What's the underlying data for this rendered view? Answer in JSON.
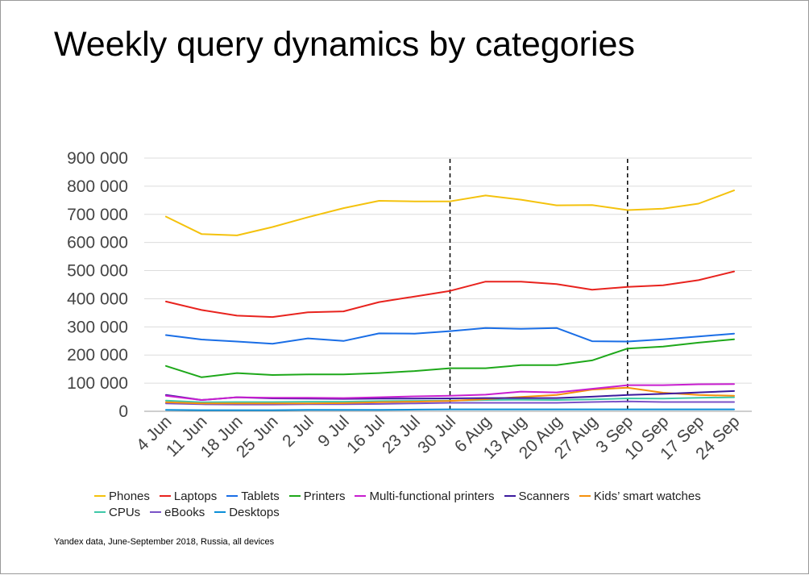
{
  "title": "Weekly query dynamics by categories",
  "source": "Yandex data, June-September 2018, Russia, all devices",
  "chart_data": {
    "type": "line",
    "title": "Weekly query dynamics by categories",
    "xlabel": "",
    "ylabel": "",
    "ylim": [
      0,
      900000
    ],
    "yticks": [
      0,
      100000,
      200000,
      300000,
      400000,
      500000,
      600000,
      700000,
      800000,
      900000
    ],
    "ytick_labels": [
      "0",
      "100 000",
      "200 000",
      "300 000",
      "400 000",
      "500 000",
      "600 000",
      "700 000",
      "800 000",
      "900 000"
    ],
    "grid": true,
    "legend_position": "bottom",
    "categories": [
      "4 Jun",
      "11 Jun",
      "18 Jun",
      "25 Jun",
      "2 Jul",
      "9 Jul",
      "16 Jul",
      "23 Jul",
      "30 Jul",
      "6 Aug",
      "13 Aug",
      "20 Aug",
      "27 Aug",
      "3 Sep",
      "10 Sep",
      "17 Sep",
      "24 Sep"
    ],
    "vertical_markers": [
      "30 Jul",
      "3 Sep"
    ],
    "series": [
      {
        "name": "Phones",
        "color": "#f4c20d",
        "values": [
          692000,
          630000,
          625000,
          655000,
          690000,
          722000,
          748000,
          746000,
          746000,
          767000,
          752000,
          732000,
          733000,
          715000,
          720000,
          738000,
          785000
        ]
      },
      {
        "name": "Laptops",
        "color": "#e8231e",
        "values": [
          390000,
          360000,
          340000,
          335000,
          352000,
          355000,
          388000,
          408000,
          428000,
          461000,
          461000,
          452000,
          432000,
          442000,
          448000,
          466000,
          497000
        ]
      },
      {
        "name": "Tablets",
        "color": "#1a6ee6",
        "values": [
          271000,
          255000,
          248000,
          240000,
          259000,
          250000,
          277000,
          276000,
          285000,
          296000,
          293000,
          296000,
          249000,
          248000,
          256000,
          266000,
          276000
        ]
      },
      {
        "name": "Printers",
        "color": "#1ea81a",
        "values": [
          161000,
          121000,
          136000,
          129000,
          131000,
          131000,
          136000,
          143000,
          153000,
          153000,
          164000,
          164000,
          181000,
          223000,
          230000,
          244000,
          256000
        ]
      },
      {
        "name": "Multi-functional printers",
        "color": "#c81ecf",
        "values": [
          55000,
          40000,
          50000,
          48000,
          48000,
          47000,
          50000,
          53000,
          55000,
          59000,
          70000,
          67000,
          80000,
          93000,
          93000,
          96000,
          97000
        ]
      },
      {
        "name": "Scanners",
        "color": "#3c1a9e",
        "values": [
          58000,
          40000,
          50000,
          46000,
          45000,
          44000,
          45000,
          45000,
          46000,
          47000,
          47000,
          47000,
          52000,
          58000,
          62000,
          67000,
          72000
        ]
      },
      {
        "name": "Kids’ smart watches",
        "color": "#f5900c",
        "values": [
          32000,
          28000,
          28000,
          28000,
          28000,
          29000,
          32000,
          34000,
          37000,
          43000,
          51000,
          58000,
          77000,
          84000,
          66000,
          58000,
          55000
        ]
      },
      {
        "name": "CPUs",
        "color": "#3ec8a8",
        "values": [
          38000,
          32000,
          33000,
          33000,
          34000,
          34000,
          36000,
          37000,
          38000,
          40000,
          41000,
          40000,
          42000,
          46000,
          45000,
          48000,
          50000
        ]
      },
      {
        "name": "eBooks",
        "color": "#7a52c7",
        "values": [
          28000,
          25000,
          24000,
          24000,
          25000,
          25000,
          26000,
          28000,
          30000,
          30000,
          30000,
          30000,
          33000,
          35000,
          33000,
          33000,
          33000
        ]
      },
      {
        "name": "Desktops",
        "color": "#0b8fd8",
        "values": [
          5000,
          4000,
          4000,
          4000,
          5000,
          5000,
          5000,
          6000,
          7000,
          7000,
          7000,
          7000,
          7000,
          7000,
          7000,
          7000,
          7000
        ]
      }
    ]
  }
}
